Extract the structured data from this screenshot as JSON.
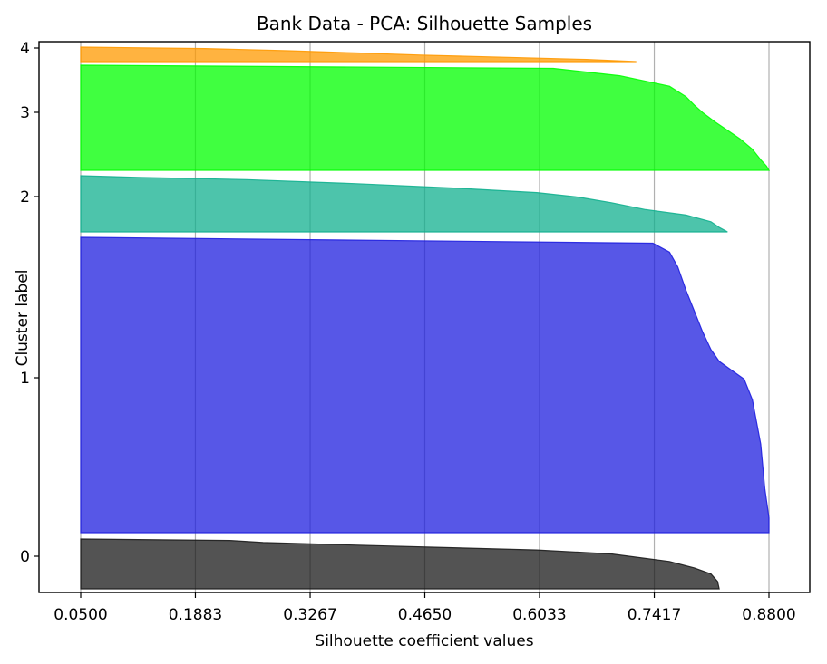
{
  "chart_data": {
    "type": "area",
    "title": "Bank Data - PCA: Silhouette Samples",
    "xlabel": "Silhouette coefficient values",
    "ylabel": "Cluster label",
    "xlim": [
      0.05,
      0.88
    ],
    "xticks": [
      "0.0500",
      "0.1883",
      "0.3267",
      "0.4650",
      "0.6033",
      "0.7417",
      "0.8800"
    ],
    "xtick_values": [
      0.05,
      0.1883,
      0.3267,
      0.465,
      0.6033,
      0.7417,
      0.88
    ],
    "grid": "x",
    "clusters": [
      {
        "label": "0",
        "color": "#1a1a1a",
        "profile": [
          [
            0,
            0.82
          ],
          [
            0.15,
            0.818
          ],
          [
            0.3,
            0.81
          ],
          [
            0.42,
            0.79
          ],
          [
            0.55,
            0.76
          ],
          [
            0.7,
            0.69
          ],
          [
            0.78,
            0.6
          ],
          [
            0.86,
            0.42
          ],
          [
            0.93,
            0.27
          ],
          [
            0.97,
            0.23
          ],
          [
            1,
            0.05
          ]
        ]
      },
      {
        "label": "1",
        "color": "#1f1fdf",
        "profile": [
          [
            0,
            0.88
          ],
          [
            0.05,
            0.88
          ],
          [
            0.15,
            0.875
          ],
          [
            0.3,
            0.87
          ],
          [
            0.45,
            0.86
          ],
          [
            0.52,
            0.85
          ],
          [
            0.55,
            0.835
          ],
          [
            0.58,
            0.82
          ],
          [
            0.62,
            0.81
          ],
          [
            0.68,
            0.8
          ],
          [
            0.75,
            0.79
          ],
          [
            0.82,
            0.78
          ],
          [
            0.9,
            0.77
          ],
          [
            0.95,
            0.76
          ],
          [
            0.98,
            0.74
          ],
          [
            1,
            0.05
          ]
        ]
      },
      {
        "label": "2",
        "color": "#12b08f",
        "profile": [
          [
            0,
            0.83
          ],
          [
            0.08,
            0.82
          ],
          [
            0.18,
            0.81
          ],
          [
            0.3,
            0.78
          ],
          [
            0.4,
            0.73
          ],
          [
            0.52,
            0.69
          ],
          [
            0.62,
            0.65
          ],
          [
            0.7,
            0.6
          ],
          [
            0.78,
            0.5
          ],
          [
            0.86,
            0.38
          ],
          [
            0.93,
            0.25
          ],
          [
            0.97,
            0.12
          ],
          [
            1,
            0.05
          ]
        ]
      },
      {
        "label": "3",
        "color": "#00ff00",
        "profile": [
          [
            0,
            0.88
          ],
          [
            0.04,
            0.877
          ],
          [
            0.1,
            0.87
          ],
          [
            0.2,
            0.86
          ],
          [
            0.3,
            0.845
          ],
          [
            0.38,
            0.83
          ],
          [
            0.46,
            0.815
          ],
          [
            0.55,
            0.8
          ],
          [
            0.62,
            0.79
          ],
          [
            0.7,
            0.78
          ],
          [
            0.8,
            0.76
          ],
          [
            0.9,
            0.7
          ],
          [
            0.97,
            0.62
          ],
          [
            1,
            0.05
          ]
        ]
      },
      {
        "label": "4",
        "color": "#ff9900",
        "profile": [
          [
            0,
            0.72
          ],
          [
            0.15,
            0.66
          ],
          [
            0.3,
            0.56
          ],
          [
            0.45,
            0.46
          ],
          [
            0.6,
            0.38
          ],
          [
            0.75,
            0.3
          ],
          [
            0.9,
            0.2
          ],
          [
            1,
            0.05
          ]
        ]
      }
    ]
  }
}
